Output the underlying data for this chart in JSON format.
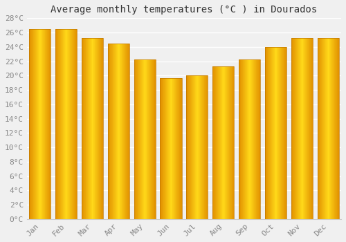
{
  "title": "Average monthly temperatures (°C ) in Dourados",
  "months": [
    "Jan",
    "Feb",
    "Mar",
    "Apr",
    "May",
    "Jun",
    "Jul",
    "Aug",
    "Sep",
    "Oct",
    "Nov",
    "Dec"
  ],
  "values": [
    26.5,
    26.5,
    25.2,
    24.5,
    22.2,
    19.6,
    20.0,
    21.3,
    22.2,
    24.0,
    25.2,
    25.2
  ],
  "bar_color_center": "#FFD000",
  "bar_color_edge": "#F5A800",
  "bar_color_dark_edge": "#E08000",
  "ylim": [
    0,
    28
  ],
  "yticks": [
    0,
    2,
    4,
    6,
    8,
    10,
    12,
    14,
    16,
    18,
    20,
    22,
    24,
    26,
    28
  ],
  "ytick_labels": [
    "0°C",
    "2°C",
    "4°C",
    "6°C",
    "8°C",
    "10°C",
    "12°C",
    "14°C",
    "16°C",
    "18°C",
    "20°C",
    "22°C",
    "24°C",
    "26°C",
    "28°C"
  ],
  "background_color": "#f0f0f0",
  "grid_color": "#ffffff",
  "title_fontsize": 10,
  "tick_fontsize": 8,
  "tick_color": "#888888",
  "font_family": "monospace"
}
